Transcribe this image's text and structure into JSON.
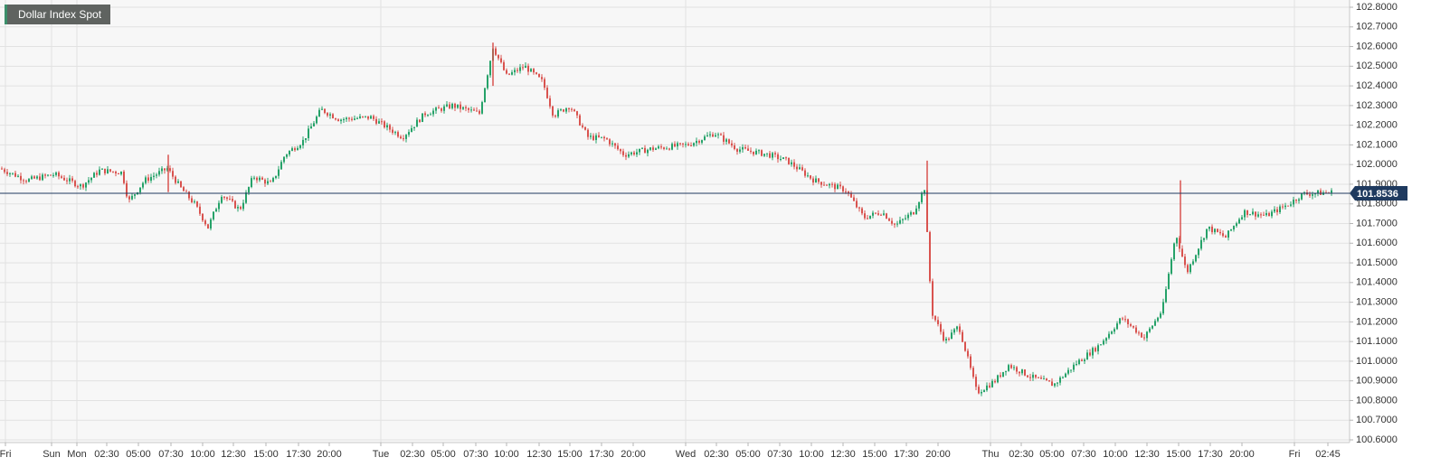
{
  "chart_data": {
    "type": "candlestick",
    "title": "Dollar Index Spot",
    "last_price": "101.8536",
    "y_ticks": [
      "102.8000",
      "102.7000",
      "102.6000",
      "102.5000",
      "102.4000",
      "102.3000",
      "102.2000",
      "102.1000",
      "102.0000",
      "101.9000",
      "101.8000",
      "101.7000",
      "101.6000",
      "101.5000",
      "101.4000",
      "101.3000",
      "101.2000",
      "101.1000",
      "101.0000",
      "100.9000",
      "100.8000",
      "100.7000",
      "100.6000"
    ],
    "ylim": [
      100.6,
      102.8
    ],
    "x_ticks": [
      "Fri",
      "Sun",
      "Mon",
      "02:30",
      "05:00",
      "07:30",
      "10:00",
      "12:30",
      "15:00",
      "17:30",
      "20:00",
      "Tue",
      "02:30",
      "05:00",
      "07:30",
      "10:00",
      "12:30",
      "15:00",
      "17:30",
      "20:00",
      "Wed",
      "02:30",
      "05:00",
      "07:30",
      "10:00",
      "12:30",
      "15:00",
      "17:30",
      "20:00",
      "Thu",
      "02:30",
      "05:00",
      "07:30",
      "10:00",
      "12:30",
      "15:00",
      "17:30",
      "20:00",
      "Fri",
      "02:45"
    ],
    "grid": true,
    "colors": {
      "up": "#26a269",
      "down": "#d9534f",
      "price_line": "#1f3a5f",
      "badge": "#1f3a5f"
    },
    "anchors": [
      [
        0,
        101.98
      ],
      [
        30,
        101.92
      ],
      [
        60,
        101.95
      ],
      [
        90,
        101.89
      ],
      [
        110,
        101.97
      ],
      [
        135,
        101.96
      ],
      [
        142,
        101.81
      ],
      [
        160,
        101.92
      ],
      [
        185,
        101.98
      ],
      [
        200,
        101.88
      ],
      [
        215,
        101.8
      ],
      [
        230,
        101.68
      ],
      [
        245,
        101.85
      ],
      [
        265,
        101.77
      ],
      [
        280,
        101.94
      ],
      [
        300,
        101.9
      ],
      [
        315,
        102.05
      ],
      [
        335,
        102.12
      ],
      [
        355,
        102.28
      ],
      [
        375,
        102.23
      ],
      [
        410,
        102.24
      ],
      [
        445,
        102.14
      ],
      [
        470,
        102.26
      ],
      [
        500,
        102.3
      ],
      [
        530,
        102.26
      ],
      [
        545,
        102.6
      ],
      [
        560,
        102.45
      ],
      [
        580,
        102.5
      ],
      [
        600,
        102.42
      ],
      [
        612,
        102.25
      ],
      [
        630,
        102.3
      ],
      [
        650,
        102.14
      ],
      [
        670,
        102.13
      ],
      [
        690,
        102.05
      ],
      [
        720,
        102.08
      ],
      [
        760,
        102.1
      ],
      [
        790,
        102.16
      ],
      [
        815,
        102.08
      ],
      [
        850,
        102.05
      ],
      [
        870,
        102.02
      ],
      [
        900,
        101.92
      ],
      [
        935,
        101.87
      ],
      [
        955,
        101.73
      ],
      [
        975,
        101.76
      ],
      [
        990,
        101.69
      ],
      [
        1010,
        101.76
      ],
      [
        1022,
        101.88
      ],
      [
        1030,
        101.25
      ],
      [
        1045,
        101.1
      ],
      [
        1060,
        101.18
      ],
      [
        1080,
        100.84
      ],
      [
        1100,
        100.9
      ],
      [
        1115,
        100.98
      ],
      [
        1140,
        100.92
      ],
      [
        1165,
        100.88
      ],
      [
        1190,
        100.99
      ],
      [
        1215,
        101.08
      ],
      [
        1240,
        101.22
      ],
      [
        1265,
        101.12
      ],
      [
        1285,
        101.26
      ],
      [
        1300,
        101.65
      ],
      [
        1312,
        101.45
      ],
      [
        1335,
        101.68
      ],
      [
        1355,
        101.63
      ],
      [
        1375,
        101.76
      ],
      [
        1400,
        101.74
      ],
      [
        1425,
        101.8
      ],
      [
        1440,
        101.85
      ],
      [
        1475,
        101.86
      ]
    ],
    "spikes": [
      [
        1025,
        102.02,
        101.85
      ],
      [
        1305,
        101.92,
        101.6
      ],
      [
        545,
        102.62,
        102.4
      ],
      [
        186,
        102.05,
        101.86
      ]
    ]
  }
}
